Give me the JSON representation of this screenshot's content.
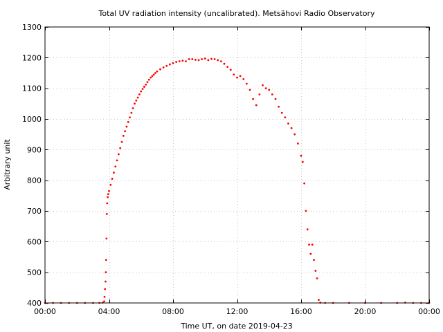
{
  "chart_data": {
    "type": "scatter",
    "title": "Total UV radiation intensity (uncalibrated). Metsähovi Radio Observatory",
    "xlabel": "Time UT, on date 2019-04-23",
    "ylabel": "Arbitrary unit",
    "xlim": [
      0,
      24
    ],
    "ylim": [
      400,
      1300
    ],
    "grid": true,
    "colors": {
      "points": "#ff0000",
      "grid": "#c8c8c8",
      "axis": "#000000"
    },
    "x_ticks": [
      {
        "value": 0,
        "label": "00:00"
      },
      {
        "value": 4,
        "label": "04:00"
      },
      {
        "value": 8,
        "label": "08:00"
      },
      {
        "value": 12,
        "label": "12:00"
      },
      {
        "value": 16,
        "label": "16:00"
      },
      {
        "value": 20,
        "label": "20:00"
      },
      {
        "value": 24,
        "label": "00:00"
      }
    ],
    "y_ticks": [
      {
        "value": 400,
        "label": "400"
      },
      {
        "value": 500,
        "label": "500"
      },
      {
        "value": 600,
        "label": "600"
      },
      {
        "value": 700,
        "label": "700"
      },
      {
        "value": 800,
        "label": "800"
      },
      {
        "value": 900,
        "label": "900"
      },
      {
        "value": 1000,
        "label": "1000"
      },
      {
        "value": 1100,
        "label": "1100"
      },
      {
        "value": 1200,
        "label": "1200"
      },
      {
        "value": 1300,
        "label": "1300"
      }
    ],
    "series": [
      {
        "points": [
          [
            0.0,
            400
          ],
          [
            0.5,
            400
          ],
          [
            1.0,
            400
          ],
          [
            1.5,
            400
          ],
          [
            2.0,
            400
          ],
          [
            2.5,
            400
          ],
          [
            3.0,
            400
          ],
          [
            3.4,
            400
          ],
          [
            3.6,
            401
          ],
          [
            3.7,
            405
          ],
          [
            3.72,
            420
          ],
          [
            3.75,
            445
          ],
          [
            3.78,
            470
          ],
          [
            3.8,
            500
          ],
          [
            3.82,
            540
          ],
          [
            3.84,
            610
          ],
          [
            3.86,
            690
          ],
          [
            3.88,
            725
          ],
          [
            3.92,
            745
          ],
          [
            3.95,
            755
          ],
          [
            4.0,
            765
          ],
          [
            4.1,
            785
          ],
          [
            4.2,
            805
          ],
          [
            4.3,
            825
          ],
          [
            4.4,
            845
          ],
          [
            4.5,
            865
          ],
          [
            4.6,
            885
          ],
          [
            4.7,
            905
          ],
          [
            4.8,
            925
          ],
          [
            4.9,
            945
          ],
          [
            5.0,
            960
          ],
          [
            5.1,
            975
          ],
          [
            5.2,
            990
          ],
          [
            5.3,
            1005
          ],
          [
            5.4,
            1020
          ],
          [
            5.5,
            1035
          ],
          [
            5.6,
            1050
          ],
          [
            5.7,
            1060
          ],
          [
            5.8,
            1070
          ],
          [
            5.9,
            1080
          ],
          [
            6.0,
            1090
          ],
          [
            6.1,
            1098
          ],
          [
            6.2,
            1105
          ],
          [
            6.3,
            1112
          ],
          [
            6.4,
            1120
          ],
          [
            6.5,
            1128
          ],
          [
            6.6,
            1135
          ],
          [
            6.7,
            1140
          ],
          [
            6.8,
            1145
          ],
          [
            6.9,
            1150
          ],
          [
            7.0,
            1155
          ],
          [
            7.2,
            1162
          ],
          [
            7.4,
            1168
          ],
          [
            7.6,
            1173
          ],
          [
            7.8,
            1178
          ],
          [
            8.0,
            1182
          ],
          [
            8.2,
            1186
          ],
          [
            8.4,
            1188
          ],
          [
            8.6,
            1190
          ],
          [
            8.8,
            1188
          ],
          [
            9.0,
            1195
          ],
          [
            9.2,
            1195
          ],
          [
            9.4,
            1193
          ],
          [
            9.6,
            1192
          ],
          [
            9.8,
            1195
          ],
          [
            10.0,
            1197
          ],
          [
            10.2,
            1192
          ],
          [
            10.4,
            1196
          ],
          [
            10.6,
            1195
          ],
          [
            10.8,
            1192
          ],
          [
            11.0,
            1188
          ],
          [
            11.2,
            1180
          ],
          [
            11.4,
            1170
          ],
          [
            11.6,
            1160
          ],
          [
            11.8,
            1145
          ],
          [
            12.0,
            1135
          ],
          [
            12.2,
            1140
          ],
          [
            12.4,
            1130
          ],
          [
            12.6,
            1115
          ],
          [
            12.8,
            1095
          ],
          [
            13.0,
            1065
          ],
          [
            13.2,
            1045
          ],
          [
            13.4,
            1080
          ],
          [
            13.6,
            1110
          ],
          [
            13.8,
            1100
          ],
          [
            14.0,
            1095
          ],
          [
            14.2,
            1080
          ],
          [
            14.4,
            1065
          ],
          [
            14.6,
            1040
          ],
          [
            14.8,
            1020
          ],
          [
            15.0,
            1005
          ],
          [
            15.2,
            985
          ],
          [
            15.4,
            970
          ],
          [
            15.6,
            950
          ],
          [
            15.8,
            920
          ],
          [
            16.0,
            880
          ],
          [
            16.1,
            860
          ],
          [
            16.2,
            790
          ],
          [
            16.3,
            700
          ],
          [
            16.4,
            640
          ],
          [
            16.5,
            590
          ],
          [
            16.6,
            560
          ],
          [
            16.7,
            590
          ],
          [
            16.8,
            540
          ],
          [
            16.9,
            505
          ],
          [
            17.0,
            480
          ],
          [
            17.1,
            410
          ],
          [
            17.2,
            401
          ],
          [
            17.5,
            400
          ],
          [
            18.0,
            400
          ],
          [
            19.0,
            400
          ],
          [
            20.0,
            400
          ],
          [
            21.0,
            400
          ],
          [
            22.0,
            400
          ],
          [
            22.5,
            401
          ],
          [
            23.0,
            400
          ],
          [
            23.5,
            400
          ],
          [
            24.0,
            400
          ]
        ]
      }
    ]
  }
}
